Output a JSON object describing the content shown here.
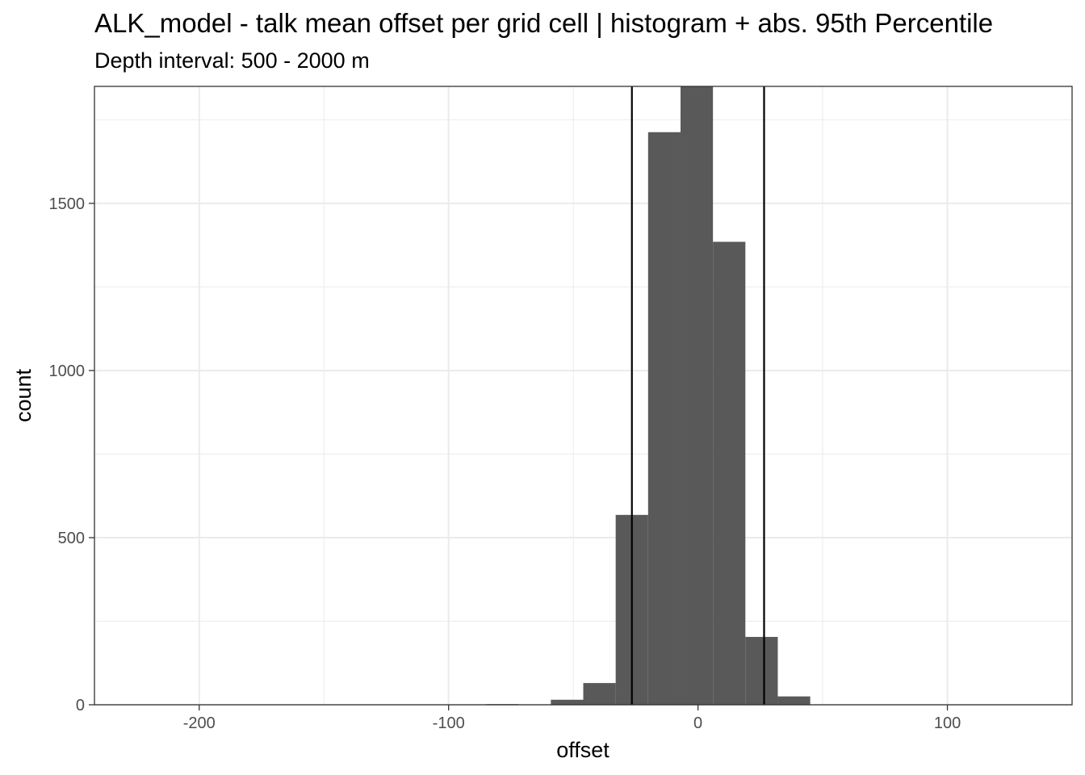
{
  "chart_data": {
    "type": "bar",
    "subtype": "histogram",
    "title": "ALK_model  -  talk mean offset per grid cell | histogram + abs. 95th Percentile",
    "subtitle": "Depth interval: 500 - 2000 m",
    "xlabel": "offset",
    "ylabel": "count",
    "xlim": [
      -242,
      150
    ],
    "ylim": [
      0,
      1850
    ],
    "x_ticks": [
      {
        "value": -200,
        "label": "-200"
      },
      {
        "value": -100,
        "label": "-100"
      },
      {
        "value": 0,
        "label": "0"
      },
      {
        "value": 100,
        "label": "100"
      }
    ],
    "x_minor_ticks": [
      -150,
      -50,
      50
    ],
    "y_ticks": [
      {
        "value": 0,
        "label": "0"
      },
      {
        "value": 500,
        "label": "500"
      },
      {
        "value": 1000,
        "label": "1000"
      },
      {
        "value": 1500,
        "label": "1500"
      }
    ],
    "y_minor_ticks": [
      250,
      750,
      1250,
      1750
    ],
    "bin_width": 13,
    "bins": [
      {
        "x0": -85,
        "x1": -72,
        "count": 2
      },
      {
        "x0": -59,
        "x1": -46,
        "count": 15
      },
      {
        "x0": -46,
        "x1": -33,
        "count": 65
      },
      {
        "x0": -33,
        "x1": -20,
        "count": 568
      },
      {
        "x0": -20,
        "x1": -7,
        "count": 1713
      },
      {
        "x0": -7,
        "x1": 6,
        "count": 1852
      },
      {
        "x0": 6,
        "x1": 19,
        "count": 1385
      },
      {
        "x0": 19,
        "x1": 32,
        "count": 203
      },
      {
        "x0": 32,
        "x1": 45,
        "count": 25
      },
      {
        "x0": 45,
        "x1": 58,
        "count": 1
      }
    ],
    "percentile_lines": [
      -26.5,
      26.5
    ],
    "bar_color": "#595959",
    "line_color": "#000000",
    "grid": true
  }
}
